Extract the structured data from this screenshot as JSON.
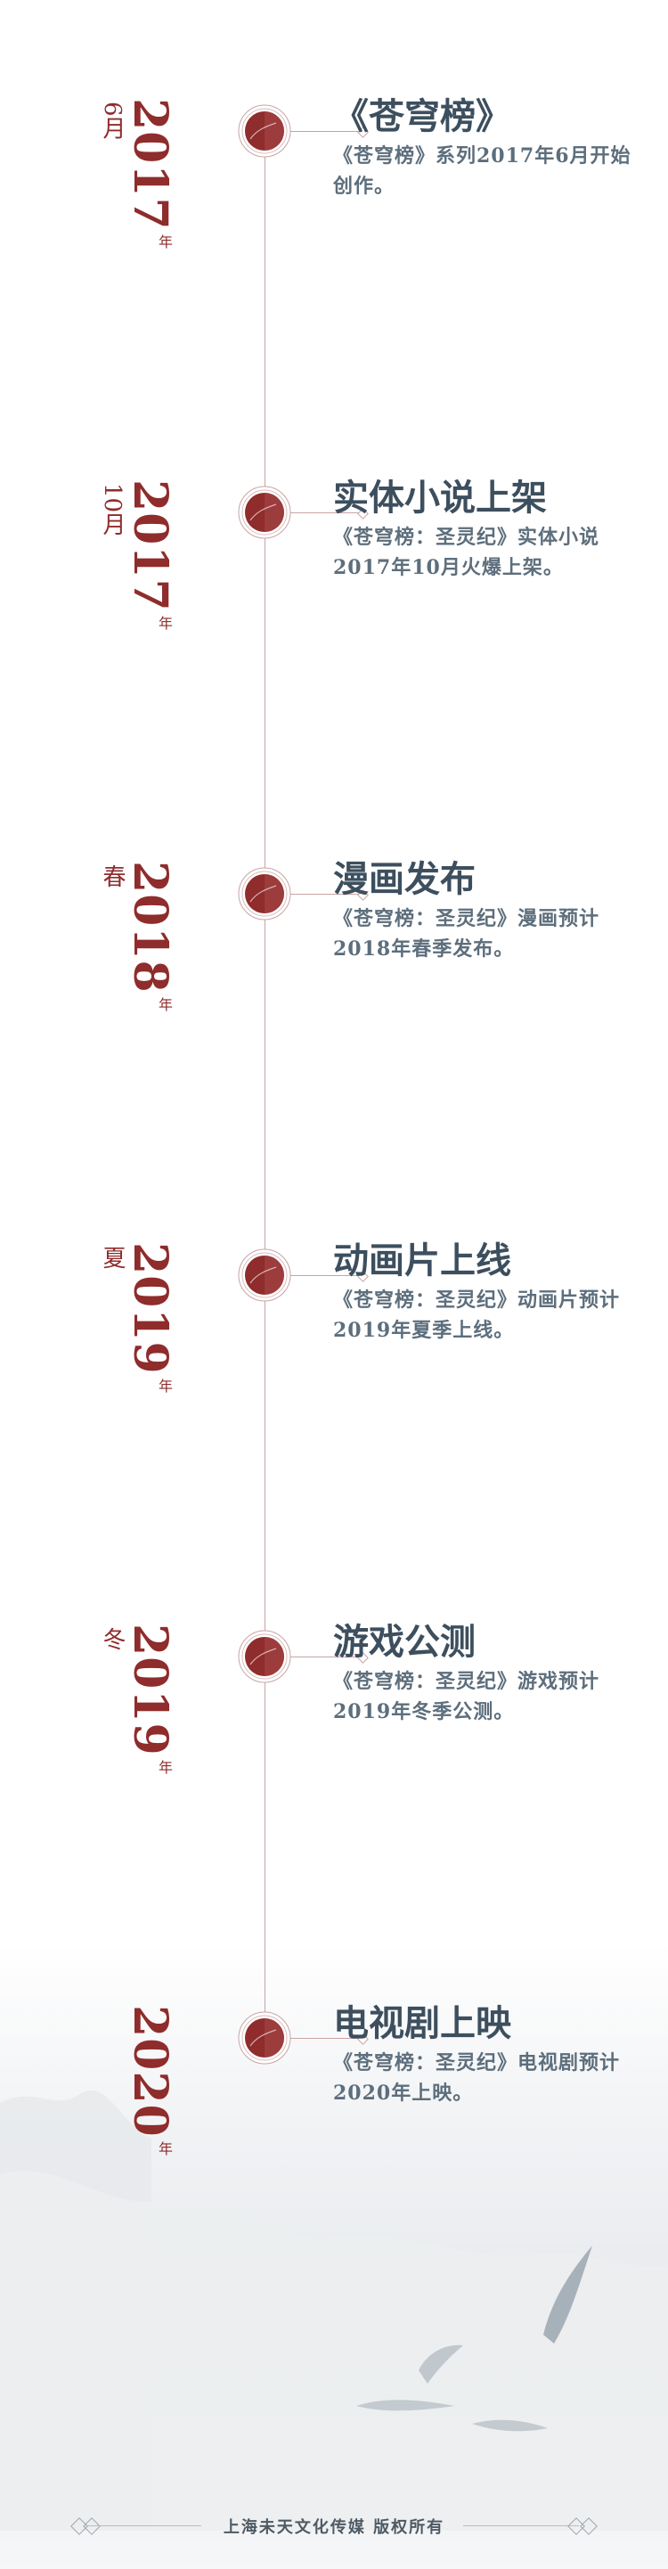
{
  "colors": {
    "accent": "#8f2c2c",
    "title": "#3d4f5e",
    "text": "#5d6e7c",
    "line": "#c9a3a3"
  },
  "entries": [
    {
      "year": "2017",
      "year_unit": "年",
      "sub": "6月",
      "title": "《苍穹榜》",
      "desc": "《苍穹榜》系列2017年6月开始创作。"
    },
    {
      "year": "2017",
      "year_unit": "年",
      "sub": "10月",
      "title": "实体小说上架",
      "desc": "《苍穹榜：圣灵纪》实体小说2017年10月火爆上架。"
    },
    {
      "year": "2018",
      "year_unit": "年",
      "sub": "春",
      "title": "漫画发布",
      "desc": "《苍穹榜：圣灵纪》漫画预计2018年春季发布。"
    },
    {
      "year": "2019",
      "year_unit": "年",
      "sub": "夏",
      "title": "动画片上线",
      "desc": "《苍穹榜：圣灵纪》动画片预计2019年夏季上线。"
    },
    {
      "year": "2019",
      "year_unit": "年",
      "sub": "冬",
      "title": "游戏公测",
      "desc": "《苍穹榜：圣灵纪》游戏预计2019年冬季公测。"
    },
    {
      "year": "2020",
      "year_unit": "年",
      "sub": "",
      "title": "电视剧上映",
      "desc": "《苍穹榜：圣灵纪》电视剧预计2020年上映。"
    }
  ],
  "footer": {
    "text": "上海未天文化传媒 版权所有"
  }
}
